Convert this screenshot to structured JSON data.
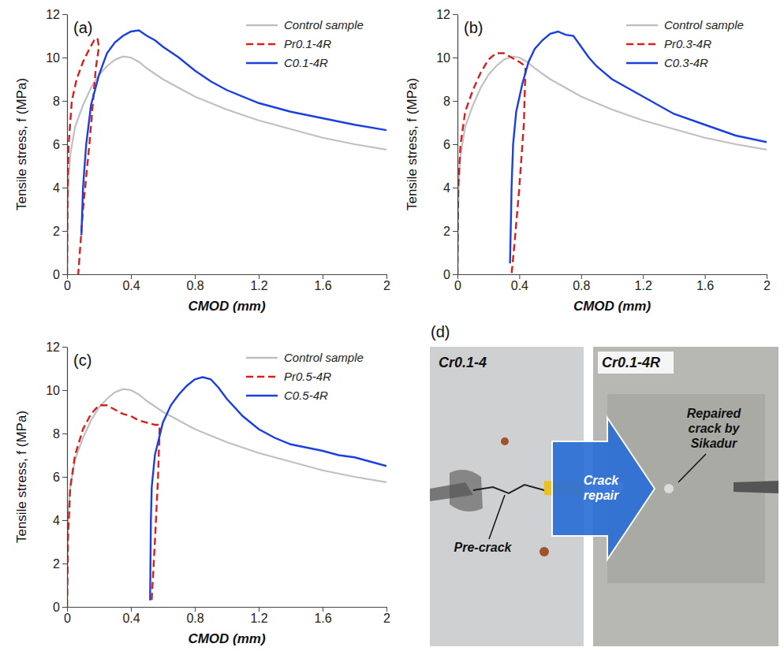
{
  "chart_data": [
    {
      "type": "line",
      "panel_label": "(a)",
      "x_label": "CMOD (mm)",
      "y_label": "Tensile stress, f (MPa)",
      "xlim": [
        0,
        2
      ],
      "ylim": [
        0,
        12
      ],
      "xticks": [
        0,
        0.4,
        0.8,
        1.2,
        1.6,
        2
      ],
      "yticks": [
        0,
        2,
        4,
        6,
        8,
        10,
        12
      ],
      "grid": false,
      "legend": "upper right",
      "series": [
        {
          "name": "Control sample",
          "color": "#c0c0c0",
          "line_style": "solid",
          "x": [
            0,
            0.005,
            0.01,
            0.02,
            0.05,
            0.1,
            0.15,
            0.2,
            0.25,
            0.3,
            0.35,
            0.4,
            0.45,
            0.5,
            0.6,
            0.7,
            0.8,
            0.9,
            1.0,
            1.2,
            1.4,
            1.6,
            1.8,
            2.0
          ],
          "values": [
            0,
            3,
            4.5,
            5.5,
            6.8,
            7.8,
            8.6,
            9.2,
            9.6,
            9.9,
            10.05,
            10.0,
            9.8,
            9.5,
            9.0,
            8.6,
            8.2,
            7.9,
            7.6,
            7.1,
            6.7,
            6.3,
            6.0,
            5.75
          ]
        },
        {
          "name": "Pr0.1-4R",
          "color": "#d62020",
          "line_style": "dashed",
          "x": [
            0,
            0.003,
            0.01,
            0.03,
            0.06,
            0.1,
            0.14,
            0.17,
            0.19,
            0.2,
            0.18,
            0.14,
            0.1,
            0.07
          ],
          "values": [
            0,
            4,
            6,
            8,
            9,
            9.8,
            10.4,
            10.8,
            10.9,
            10.5,
            9.5,
            6,
            3,
            0
          ]
        },
        {
          "name": "C0.1-4R",
          "color": "#1a3fe0",
          "line_style": "solid",
          "x": [
            0.09,
            0.1,
            0.12,
            0.15,
            0.2,
            0.25,
            0.3,
            0.35,
            0.4,
            0.45,
            0.5,
            0.55,
            0.6,
            0.7,
            0.8,
            0.9,
            1.0,
            1.2,
            1.4,
            1.6,
            1.8,
            2.0
          ],
          "values": [
            1.8,
            4,
            6,
            7.8,
            9.2,
            10.2,
            10.7,
            11.0,
            11.2,
            11.25,
            11.0,
            10.8,
            10.5,
            10.0,
            9.4,
            8.9,
            8.5,
            7.9,
            7.5,
            7.2,
            6.9,
            6.65
          ]
        }
      ]
    },
    {
      "type": "line",
      "panel_label": "(b)",
      "x_label": "CMOD (mm)",
      "y_label": "Tensile stress, f (MPa)",
      "xlim": [
        0,
        2
      ],
      "ylim": [
        0,
        12
      ],
      "xticks": [
        0,
        0.4,
        0.8,
        1.2,
        1.6,
        2
      ],
      "yticks": [
        0,
        2,
        4,
        6,
        8,
        10,
        12
      ],
      "grid": false,
      "legend": "upper right",
      "series": [
        {
          "name": "Control sample",
          "color": "#c0c0c0",
          "line_style": "solid",
          "x": [
            0,
            0.005,
            0.01,
            0.02,
            0.05,
            0.1,
            0.15,
            0.2,
            0.25,
            0.3,
            0.35,
            0.4,
            0.45,
            0.5,
            0.6,
            0.7,
            0.8,
            0.9,
            1.0,
            1.2,
            1.4,
            1.6,
            1.8,
            2.0
          ],
          "values": [
            0,
            3,
            4.5,
            5.5,
            6.8,
            7.8,
            8.6,
            9.2,
            9.6,
            9.9,
            10.05,
            10.0,
            9.8,
            9.5,
            9.0,
            8.6,
            8.2,
            7.9,
            7.6,
            7.1,
            6.7,
            6.3,
            6.0,
            5.75
          ]
        },
        {
          "name": "Pr0.3-4R",
          "color": "#d62020",
          "line_style": "dashed",
          "x": [
            0,
            0.005,
            0.02,
            0.05,
            0.1,
            0.15,
            0.2,
            0.25,
            0.3,
            0.35,
            0.4,
            0.44,
            0.43,
            0.4,
            0.37,
            0.35
          ],
          "values": [
            0,
            4,
            6,
            7.5,
            8.5,
            9.3,
            9.9,
            10.2,
            10.2,
            10.0,
            9.8,
            9.6,
            7,
            4,
            1.5,
            0
          ]
        },
        {
          "name": "C0.3-4R",
          "color": "#1a3fe0",
          "line_style": "solid",
          "x": [
            0.34,
            0.35,
            0.36,
            0.38,
            0.42,
            0.46,
            0.5,
            0.55,
            0.6,
            0.65,
            0.7,
            0.75,
            0.8,
            0.85,
            0.9,
            1.0,
            1.2,
            1.4,
            1.6,
            1.8,
            2.0
          ],
          "values": [
            0.5,
            4,
            6,
            7.5,
            8.8,
            9.8,
            10.4,
            10.8,
            11.1,
            11.2,
            11.05,
            11.0,
            10.5,
            10.0,
            9.6,
            9.0,
            8.2,
            7.4,
            6.9,
            6.4,
            6.1
          ]
        }
      ]
    },
    {
      "type": "line",
      "panel_label": "(c)",
      "x_label": "CMOD (mm)",
      "y_label": "Tensile stress, f (MPa)",
      "xlim": [
        0,
        2
      ],
      "ylim": [
        0,
        12
      ],
      "xticks": [
        0,
        0.4,
        0.8,
        1.2,
        1.6,
        2
      ],
      "yticks": [
        0,
        2,
        4,
        6,
        8,
        10,
        12
      ],
      "grid": false,
      "legend": "upper right",
      "series": [
        {
          "name": "Control sample",
          "color": "#c0c0c0",
          "line_style": "solid",
          "x": [
            0,
            0.005,
            0.01,
            0.02,
            0.05,
            0.1,
            0.15,
            0.2,
            0.25,
            0.3,
            0.35,
            0.4,
            0.45,
            0.5,
            0.6,
            0.7,
            0.8,
            0.9,
            1.0,
            1.2,
            1.4,
            1.6,
            1.8,
            2.0
          ],
          "values": [
            0,
            3,
            4.5,
            5.5,
            6.8,
            7.8,
            8.6,
            9.2,
            9.6,
            9.9,
            10.05,
            10.0,
            9.8,
            9.5,
            9.0,
            8.6,
            8.2,
            7.9,
            7.6,
            7.1,
            6.7,
            6.3,
            6.0,
            5.75
          ]
        },
        {
          "name": "Pr0.5-4R",
          "color": "#d62020",
          "line_style": "dashed",
          "x": [
            0,
            0.005,
            0.02,
            0.05,
            0.1,
            0.15,
            0.2,
            0.25,
            0.3,
            0.35,
            0.4,
            0.45,
            0.5,
            0.55,
            0.58,
            0.57,
            0.55,
            0.53
          ],
          "values": [
            0,
            3,
            5.5,
            7,
            8.2,
            8.9,
            9.3,
            9.3,
            9.1,
            8.9,
            8.8,
            8.6,
            8.5,
            8.4,
            8.4,
            6,
            3,
            0.3
          ]
        },
        {
          "name": "C0.5-4R",
          "color": "#1a3fe0",
          "line_style": "solid",
          "x": [
            0.52,
            0.525,
            0.53,
            0.55,
            0.6,
            0.65,
            0.7,
            0.75,
            0.8,
            0.85,
            0.9,
            0.95,
            1.0,
            1.1,
            1.2,
            1.3,
            1.4,
            1.6,
            1.7,
            1.8,
            2.0
          ],
          "values": [
            0.3,
            4,
            5.5,
            7,
            8.5,
            9.3,
            9.8,
            10.2,
            10.5,
            10.6,
            10.5,
            10.1,
            9.6,
            8.8,
            8.2,
            7.8,
            7.5,
            7.2,
            7.0,
            6.9,
            6.5
          ]
        }
      ]
    }
  ],
  "photo_panel": {
    "panel_label": "(d)",
    "images": [
      {
        "title": "Cr0.1-4",
        "annotation": "Pre-crack"
      },
      {
        "title": "Cr0.1-4R",
        "annotation": "Repaired crack by Sikadur"
      }
    ],
    "arrow_label": "Crack repair"
  }
}
